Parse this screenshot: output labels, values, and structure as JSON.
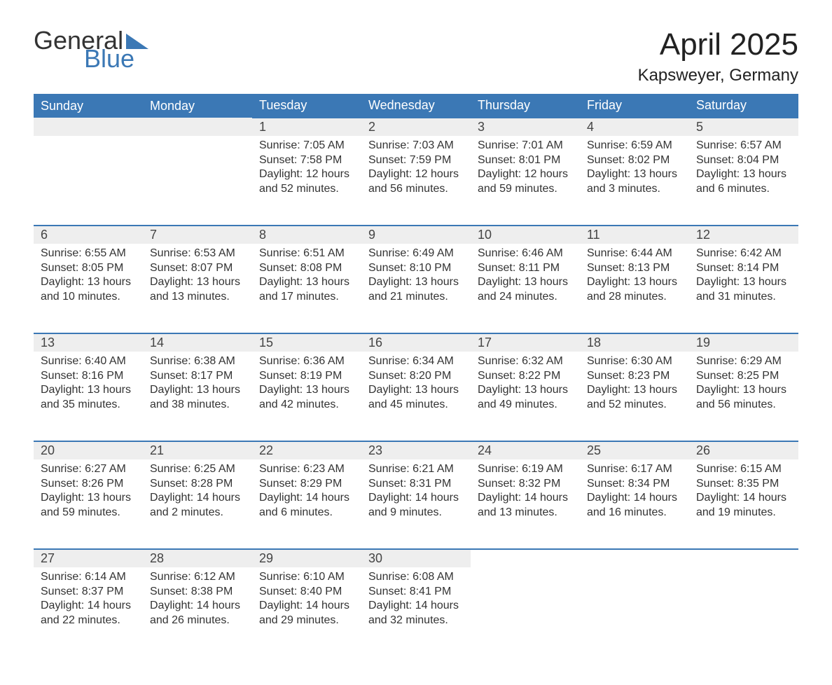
{
  "logo": {
    "word1": "General",
    "word2": "Blue"
  },
  "title": "April 2025",
  "location": "Kapsweyer, Germany",
  "colors": {
    "header_bg": "#3b78b5",
    "header_text": "#ffffff",
    "daynum_bg": "#eeeeee",
    "rule": "#3b78b5",
    "body_text": "#333333",
    "page_bg": "#ffffff"
  },
  "fonts": {
    "title_size": 44,
    "location_size": 24,
    "header_size": 18,
    "daynum_size": 18,
    "body_size": 16
  },
  "columns": [
    "Sunday",
    "Monday",
    "Tuesday",
    "Wednesday",
    "Thursday",
    "Friday",
    "Saturday"
  ],
  "weeks": [
    [
      null,
      null,
      {
        "d": "1",
        "sr": "7:05 AM",
        "ss": "7:58 PM",
        "dl": "12 hours and 52 minutes."
      },
      {
        "d": "2",
        "sr": "7:03 AM",
        "ss": "7:59 PM",
        "dl": "12 hours and 56 minutes."
      },
      {
        "d": "3",
        "sr": "7:01 AM",
        "ss": "8:01 PM",
        "dl": "12 hours and 59 minutes."
      },
      {
        "d": "4",
        "sr": "6:59 AM",
        "ss": "8:02 PM",
        "dl": "13 hours and 3 minutes."
      },
      {
        "d": "5",
        "sr": "6:57 AM",
        "ss": "8:04 PM",
        "dl": "13 hours and 6 minutes."
      }
    ],
    [
      {
        "d": "6",
        "sr": "6:55 AM",
        "ss": "8:05 PM",
        "dl": "13 hours and 10 minutes."
      },
      {
        "d": "7",
        "sr": "6:53 AM",
        "ss": "8:07 PM",
        "dl": "13 hours and 13 minutes."
      },
      {
        "d": "8",
        "sr": "6:51 AM",
        "ss": "8:08 PM",
        "dl": "13 hours and 17 minutes."
      },
      {
        "d": "9",
        "sr": "6:49 AM",
        "ss": "8:10 PM",
        "dl": "13 hours and 21 minutes."
      },
      {
        "d": "10",
        "sr": "6:46 AM",
        "ss": "8:11 PM",
        "dl": "13 hours and 24 minutes."
      },
      {
        "d": "11",
        "sr": "6:44 AM",
        "ss": "8:13 PM",
        "dl": "13 hours and 28 minutes."
      },
      {
        "d": "12",
        "sr": "6:42 AM",
        "ss": "8:14 PM",
        "dl": "13 hours and 31 minutes."
      }
    ],
    [
      {
        "d": "13",
        "sr": "6:40 AM",
        "ss": "8:16 PM",
        "dl": "13 hours and 35 minutes."
      },
      {
        "d": "14",
        "sr": "6:38 AM",
        "ss": "8:17 PM",
        "dl": "13 hours and 38 minutes."
      },
      {
        "d": "15",
        "sr": "6:36 AM",
        "ss": "8:19 PM",
        "dl": "13 hours and 42 minutes."
      },
      {
        "d": "16",
        "sr": "6:34 AM",
        "ss": "8:20 PM",
        "dl": "13 hours and 45 minutes."
      },
      {
        "d": "17",
        "sr": "6:32 AM",
        "ss": "8:22 PM",
        "dl": "13 hours and 49 minutes."
      },
      {
        "d": "18",
        "sr": "6:30 AM",
        "ss": "8:23 PM",
        "dl": "13 hours and 52 minutes."
      },
      {
        "d": "19",
        "sr": "6:29 AM",
        "ss": "8:25 PM",
        "dl": "13 hours and 56 minutes."
      }
    ],
    [
      {
        "d": "20",
        "sr": "6:27 AM",
        "ss": "8:26 PM",
        "dl": "13 hours and 59 minutes."
      },
      {
        "d": "21",
        "sr": "6:25 AM",
        "ss": "8:28 PM",
        "dl": "14 hours and 2 minutes."
      },
      {
        "d": "22",
        "sr": "6:23 AM",
        "ss": "8:29 PM",
        "dl": "14 hours and 6 minutes."
      },
      {
        "d": "23",
        "sr": "6:21 AM",
        "ss": "8:31 PM",
        "dl": "14 hours and 9 minutes."
      },
      {
        "d": "24",
        "sr": "6:19 AM",
        "ss": "8:32 PM",
        "dl": "14 hours and 13 minutes."
      },
      {
        "d": "25",
        "sr": "6:17 AM",
        "ss": "8:34 PM",
        "dl": "14 hours and 16 minutes."
      },
      {
        "d": "26",
        "sr": "6:15 AM",
        "ss": "8:35 PM",
        "dl": "14 hours and 19 minutes."
      }
    ],
    [
      {
        "d": "27",
        "sr": "6:14 AM",
        "ss": "8:37 PM",
        "dl": "14 hours and 22 minutes."
      },
      {
        "d": "28",
        "sr": "6:12 AM",
        "ss": "8:38 PM",
        "dl": "14 hours and 26 minutes."
      },
      {
        "d": "29",
        "sr": "6:10 AM",
        "ss": "8:40 PM",
        "dl": "14 hours and 29 minutes."
      },
      {
        "d": "30",
        "sr": "6:08 AM",
        "ss": "8:41 PM",
        "dl": "14 hours and 32 minutes."
      },
      null,
      null,
      null
    ]
  ],
  "labels": {
    "sunrise": "Sunrise: ",
    "sunset": "Sunset: ",
    "daylight": "Daylight: "
  }
}
